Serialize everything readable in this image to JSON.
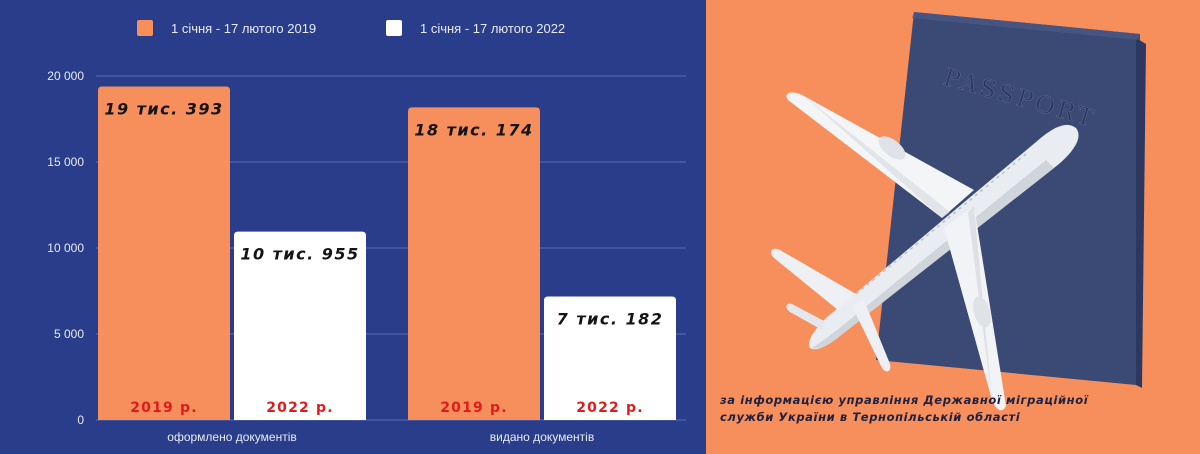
{
  "legend": {
    "series_2019": "1 січня - 17 лютого 2019",
    "series_2022": "1 січня - 17 лютого 2022"
  },
  "colors": {
    "background": "#2a3d8a",
    "bar_2019": "#f68f5c",
    "bar_2022": "#ffffff",
    "year_label": "#e01b1b",
    "value_label": "#141414",
    "photo_background": "#f68f5c",
    "passport": "#3b4a75"
  },
  "chart_data": {
    "type": "bar",
    "categories": [
      "оформлено документів",
      "видано документів"
    ],
    "series": [
      {
        "name": "1 січня - 17 лютого 2019",
        "values": [
          19393,
          18174
        ],
        "value_labels": [
          "19 тис. 393",
          "18 тис. 174"
        ],
        "year_label": "2019 р."
      },
      {
        "name": "1 січня - 17 лютого 2022",
        "values": [
          10955,
          7182
        ],
        "value_labels": [
          "10 тис. 955",
          "7 тис. 182"
        ],
        "year_label": "2022 р."
      }
    ],
    "ylim": [
      0,
      20000
    ],
    "yticks": [
      0,
      5000,
      10000,
      15000,
      20000
    ],
    "ytick_labels": [
      "0",
      "5 000",
      "10 000",
      "15 000",
      "20 000"
    ],
    "grid": true,
    "legend_position": "top"
  },
  "photo": {
    "passport_text": "PASSPORT"
  },
  "caption": {
    "line1": "за інформацією управління Державної міграційної",
    "line2": "служби України в Тернопільській області"
  }
}
